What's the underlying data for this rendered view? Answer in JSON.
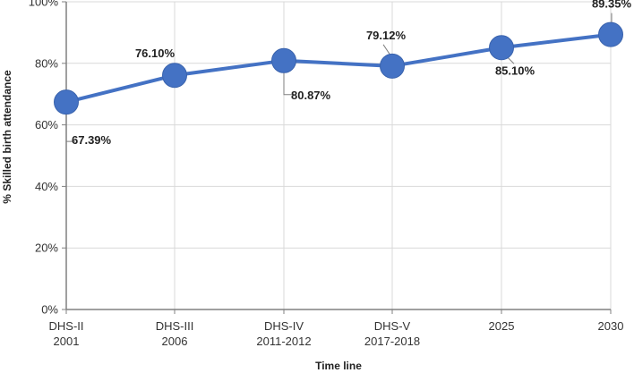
{
  "chart_data": {
    "type": "line",
    "categories": [
      [
        "DHS-II",
        "2001"
      ],
      [
        "DHS-III",
        "2006"
      ],
      [
        "DHS-IV",
        "2011-2012"
      ],
      [
        "DHS-V",
        "2017-2018"
      ],
      [
        "2025"
      ],
      [
        "2030"
      ]
    ],
    "series": [
      {
        "values": [
          67.39,
          76.1,
          80.87,
          79.12,
          85.1,
          89.35
        ]
      }
    ],
    "data_labels": [
      "67.39%",
      "76.10%",
      "80.87%",
      "79.12%",
      "85.10%",
      "89.35%"
    ],
    "title": "",
    "xlabel": "Time line",
    "ylabel": "% Skilled birth attendance",
    "ylim": [
      0,
      100
    ],
    "yticks": [
      0,
      20,
      40,
      60,
      80,
      100
    ],
    "ytick_labels": [
      "0%",
      "20%",
      "40%",
      "60%",
      "80%",
      "100%"
    ],
    "grid": "horizontal and vertical",
    "legend": "none",
    "colors": {
      "series": "#4472c4",
      "grid": "#d9d9d9",
      "axis": "#808080",
      "leader": "#7f7f7f"
    }
  }
}
